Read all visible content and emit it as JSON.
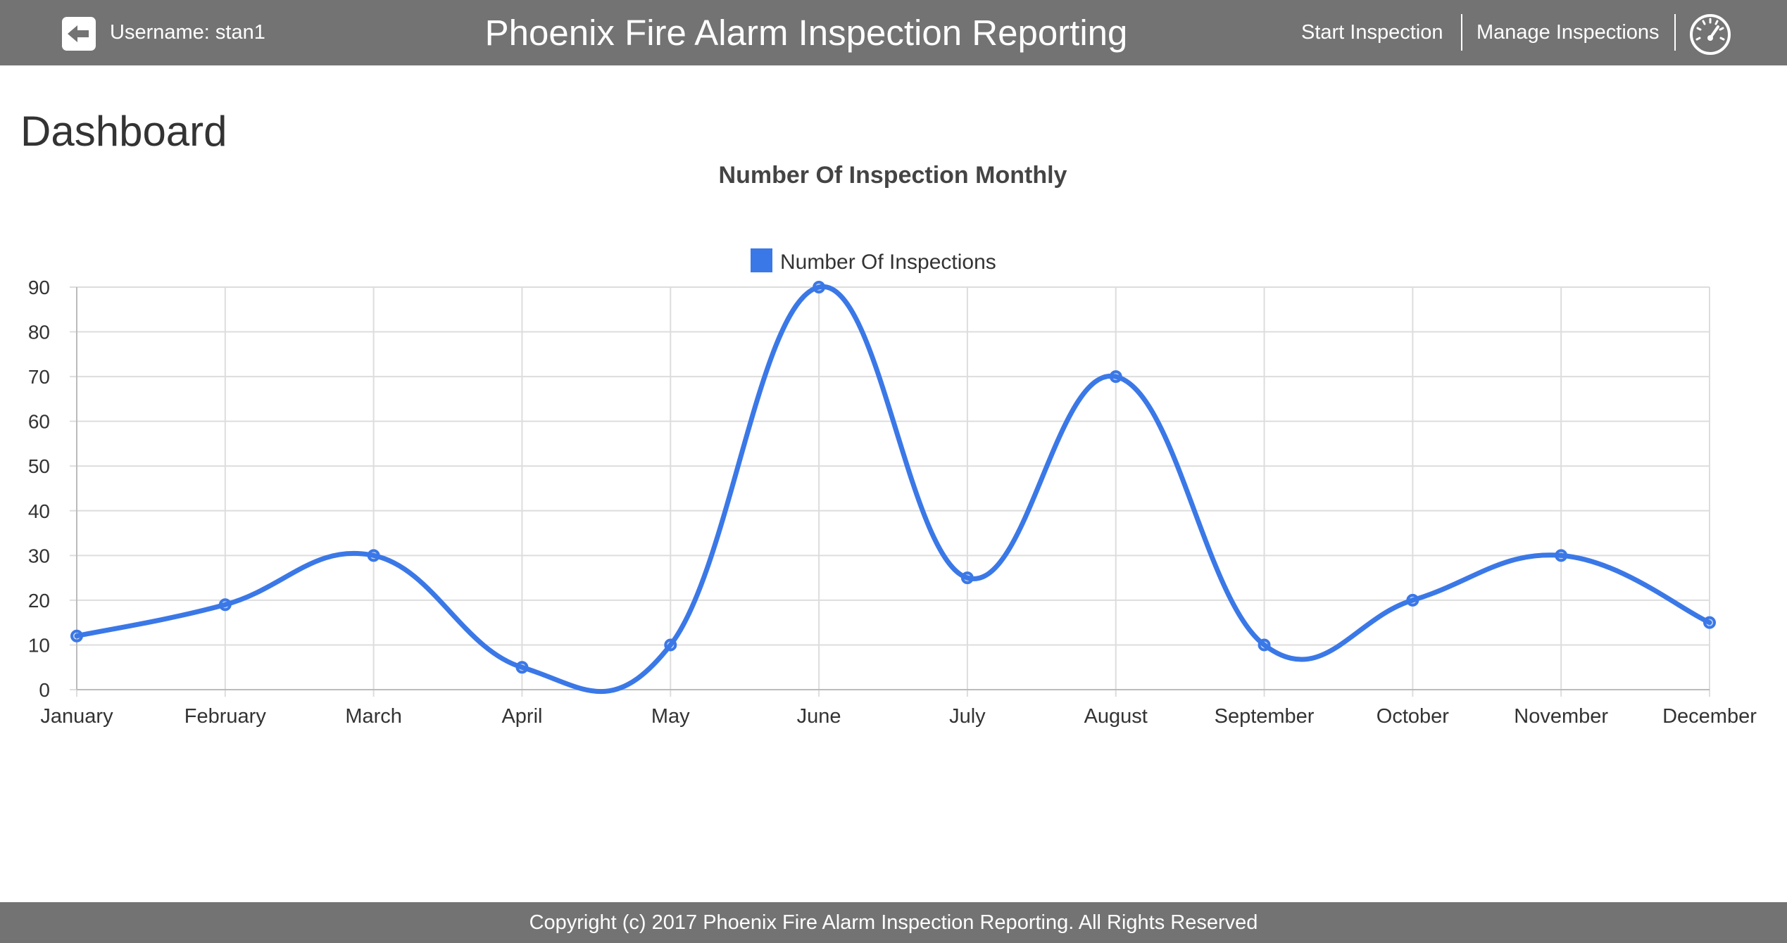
{
  "header": {
    "username": "Username: stan1",
    "app_title": "Phoenix Fire Alarm Inspection Reporting",
    "nav": {
      "start_inspection": "Start Inspection",
      "manage_inspections": "Manage Inspections"
    },
    "icons": {
      "logout": "logout-arrow-icon",
      "dashboard": "speedometer-icon"
    }
  },
  "page": {
    "title": "Dashboard"
  },
  "chart_data": {
    "type": "line",
    "title": "Number Of Inspection Monthly",
    "categories": [
      "January",
      "February",
      "March",
      "April",
      "May",
      "June",
      "July",
      "August",
      "September",
      "October",
      "November",
      "December"
    ],
    "series": [
      {
        "name": "Number Of Inspections",
        "values": [
          12,
          19,
          30,
          5,
          10,
          90,
          25,
          70,
          10,
          20,
          30,
          15
        ],
        "color": "#3b78e7"
      }
    ],
    "ylim": [
      0,
      90
    ],
    "yticks": [
      0,
      10,
      20,
      30,
      40,
      50,
      60,
      70,
      80,
      90
    ],
    "grid": true,
    "legend_position": "top"
  },
  "footer": {
    "copyright": "Copyright (c) 2017 Phoenix Fire Alarm Inspection Reporting. All Rights Reserved"
  }
}
